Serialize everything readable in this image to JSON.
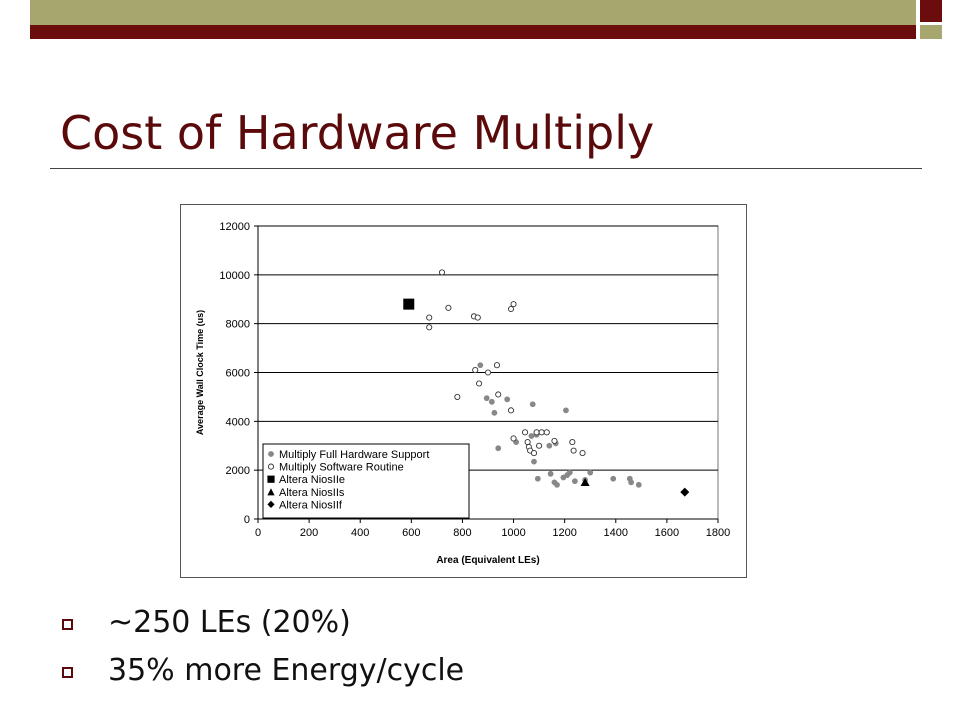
{
  "slide": {
    "title": "Cost of Hardware Multiply",
    "bullets": [
      "~250 LEs (20%)",
      "35% more Energy/cycle"
    ],
    "colors": {
      "title": "#5a0a0a",
      "band_olive": "#a7a66f",
      "band_maroon": "#6b0d0d"
    }
  },
  "chart_data": {
    "type": "scatter",
    "title": "",
    "xlabel": "Area (Equivalent LEs)",
    "ylabel": "Average Wall Clock Time (us)",
    "xlim": [
      0,
      1800
    ],
    "ylim": [
      0,
      12000
    ],
    "x_ticks": [
      0,
      200,
      400,
      600,
      800,
      1000,
      1200,
      1400,
      1600,
      1800
    ],
    "y_ticks": [
      0,
      2000,
      4000,
      6000,
      8000,
      10000,
      12000
    ],
    "grid": "horizontal",
    "legend_position": "bottom-left",
    "series": [
      {
        "name": "Multiply Full Hardware Support",
        "marker": "filled-circle",
        "color": "#888888",
        "points": [
          [
            870,
            6300
          ],
          [
            895,
            4950
          ],
          [
            915,
            4800
          ],
          [
            925,
            4350
          ],
          [
            975,
            4900
          ],
          [
            1075,
            4700
          ],
          [
            1205,
            4450
          ],
          [
            940,
            2900
          ],
          [
            1010,
            3150
          ],
          [
            1070,
            3400
          ],
          [
            1090,
            3450
          ],
          [
            1140,
            3000
          ],
          [
            1165,
            3100
          ],
          [
            1080,
            2350
          ],
          [
            1095,
            1650
          ],
          [
            1145,
            1850
          ],
          [
            1160,
            1500
          ],
          [
            1170,
            1400
          ],
          [
            1195,
            1700
          ],
          [
            1210,
            1800
          ],
          [
            1220,
            1900
          ],
          [
            1240,
            1550
          ],
          [
            1280,
            1600
          ],
          [
            1300,
            1900
          ],
          [
            1390,
            1650
          ],
          [
            1455,
            1650
          ],
          [
            1460,
            1500
          ],
          [
            1490,
            1400
          ]
        ]
      },
      {
        "name": "Multiply Software Routine",
        "marker": "open-circle",
        "color": "#333333",
        "points": [
          [
            720,
            10100
          ],
          [
            745,
            8650
          ],
          [
            670,
            8250
          ],
          [
            670,
            7850
          ],
          [
            845,
            8300
          ],
          [
            860,
            8250
          ],
          [
            990,
            8600
          ],
          [
            1000,
            8800
          ],
          [
            780,
            5000
          ],
          [
            850,
            6100
          ],
          [
            900,
            6000
          ],
          [
            935,
            6300
          ],
          [
            865,
            5550
          ],
          [
            940,
            5100
          ],
          [
            990,
            4450
          ],
          [
            1000,
            3300
          ],
          [
            1045,
            3550
          ],
          [
            1055,
            3150
          ],
          [
            1060,
            2950
          ],
          [
            1065,
            2800
          ],
          [
            1080,
            2700
          ],
          [
            1090,
            3550
          ],
          [
            1100,
            3000
          ],
          [
            1110,
            3550
          ],
          [
            1130,
            3550
          ],
          [
            1160,
            3200
          ],
          [
            1230,
            3150
          ],
          [
            1235,
            2800
          ],
          [
            1270,
            2700
          ]
        ]
      },
      {
        "name": "Altera NiosIIe",
        "marker": "filled-square",
        "color": "#000000",
        "points": [
          [
            590,
            8800
          ]
        ]
      },
      {
        "name": "Altera NiosIIs",
        "marker": "filled-triangle",
        "color": "#000000",
        "points": [
          [
            1280,
            1500
          ]
        ]
      },
      {
        "name": "Altera NiosIIf",
        "marker": "filled-diamond",
        "color": "#000000",
        "points": [
          [
            1670,
            1100
          ]
        ]
      }
    ]
  }
}
